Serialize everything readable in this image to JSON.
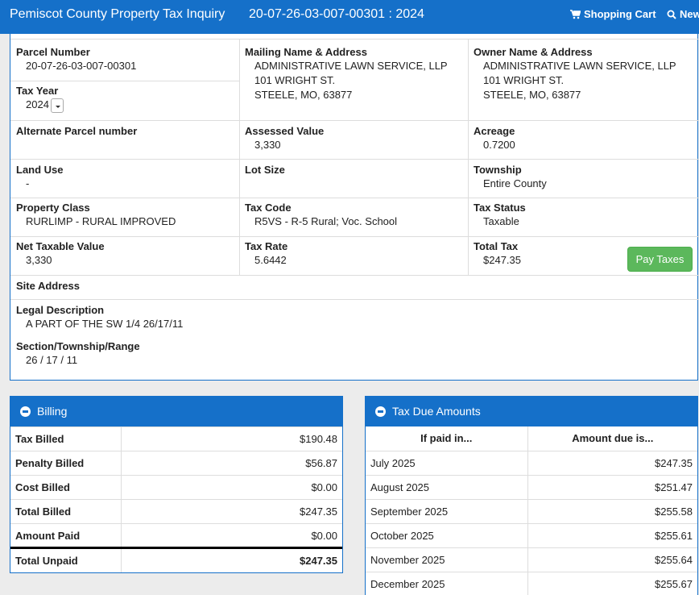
{
  "header": {
    "title": "Pemiscot County Property Tax Inquiry",
    "parcel_title": "20-07-26-03-007-00301 : 2024",
    "cart_label": "Shopping Cart",
    "new_label": "New"
  },
  "parcel": {
    "parcel_number_label": "Parcel Number",
    "parcel_number": "20-07-26-03-007-00301",
    "tax_year_label": "Tax Year",
    "tax_year": "2024",
    "mailing_label": "Mailing Name & Address",
    "mailing_name": "ADMINISTRATIVE LAWN SERVICE, LLP",
    "mailing_street": "101 WRIGHT ST.",
    "mailing_city": "STEELE, MO, 63877",
    "owner_label": "Owner Name & Address",
    "owner_name": "ADMINISTRATIVE LAWN SERVICE, LLP",
    "owner_street": "101 WRIGHT ST.",
    "owner_city": "STEELE, MO, 63877",
    "alt_parcel_label": "Alternate Parcel number",
    "alt_parcel": "",
    "assessed_label": "Assessed Value",
    "assessed": "3,330",
    "acreage_label": "Acreage",
    "acreage": "0.7200",
    "land_use_label": "Land Use",
    "land_use": "-",
    "lot_size_label": "Lot Size",
    "lot_size": "",
    "township_label": "Township",
    "township": "Entire County",
    "class_label": "Property Class",
    "class": "RURLIMP - RURAL IMPROVED",
    "tax_code_label": "Tax Code",
    "tax_code": "R5VS - R-5 Rural; Voc. School",
    "tax_status_label": "Tax Status",
    "tax_status": "Taxable",
    "net_taxable_label": "Net Taxable Value",
    "net_taxable": "3,330",
    "tax_rate_label": "Tax Rate",
    "tax_rate": "5.6442",
    "total_tax_label": "Total Tax",
    "total_tax": "$247.35",
    "pay_label": "Pay Taxes",
    "site_label": "Site Address",
    "legal_label": "Legal Description",
    "legal": "A PART OF THE SW 1/4 26/17/11",
    "str_label": "Section/Township/Range",
    "str": "26 / 17 / 11"
  },
  "billing": {
    "title": "Billing",
    "rows": [
      {
        "label": "Tax Billed",
        "value": "$190.48"
      },
      {
        "label": "Penalty Billed",
        "value": "$56.87"
      },
      {
        "label": "Cost Billed",
        "value": "$0.00"
      },
      {
        "label": "Total Billed",
        "value": "$247.35"
      },
      {
        "label": "Amount Paid",
        "value": "$0.00"
      },
      {
        "label": "Total Unpaid",
        "value": "$247.35"
      }
    ]
  },
  "due": {
    "title": "Tax Due Amounts",
    "col1": "If paid in...",
    "col2": "Amount due is...",
    "rows": [
      {
        "month": "July 2025",
        "amount": "$247.35"
      },
      {
        "month": "August 2025",
        "amount": "$251.47"
      },
      {
        "month": "September 2025",
        "amount": "$255.58"
      },
      {
        "month": "October 2025",
        "amount": "$255.61"
      },
      {
        "month": "November 2025",
        "amount": "$255.64"
      },
      {
        "month": "December 2025",
        "amount": "$255.67"
      }
    ]
  },
  "icons": {
    "cart": "cart-icon",
    "search": "search-icon",
    "collapse": "minus-circle-icon",
    "dropdown": "caret-down-icon"
  }
}
